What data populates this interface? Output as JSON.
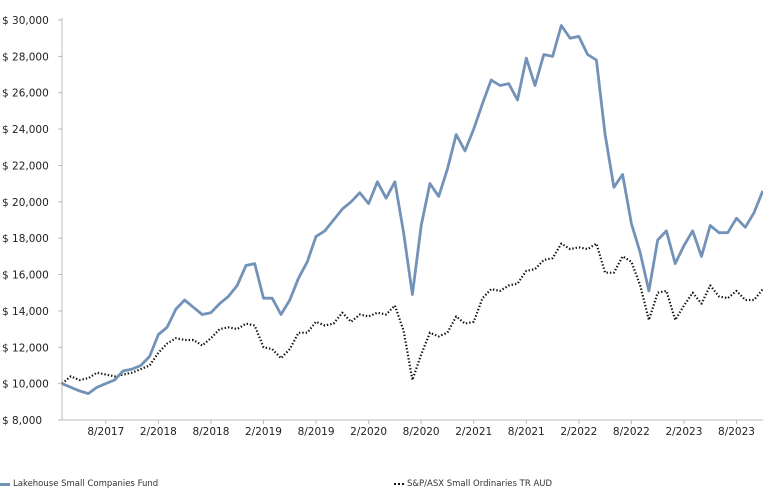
{
  "chart_data": {
    "type": "line",
    "title": "",
    "xlabel": "",
    "ylabel": "",
    "ylim": [
      8000,
      30000
    ],
    "y_ticks": [
      8000,
      10000,
      12000,
      14000,
      16000,
      18000,
      20000,
      22000,
      24000,
      26000,
      28000,
      30000
    ],
    "y_tick_labels": [
      "$ 8,000",
      "$ 10,000",
      "$ 12,000",
      "$ 14,000",
      "$ 16,000",
      "$ 18,000",
      "$ 20,000",
      "$ 22,000",
      "$ 24,000",
      "$ 26,000",
      "$ 28,000",
      "$ 30,000"
    ],
    "x_tick_labels": [
      "8/2017",
      "2/2018",
      "8/2018",
      "2/2019",
      "8/2019",
      "2/2020",
      "8/2020",
      "2/2021",
      "8/2021",
      "2/2022",
      "8/2022",
      "2/2023",
      "8/2023"
    ],
    "x_start": "3/2017",
    "x_end": "10/2023",
    "grid": false,
    "legend_position": "bottom",
    "series": [
      {
        "name": "Lakehouse Small Companies Fund",
        "color": "#7392b8",
        "style": "solid",
        "values": [
          10000,
          9800,
          9600,
          9450,
          9800,
          10000,
          10200,
          10700,
          10800,
          11000,
          11500,
          12700,
          13100,
          14100,
          14600,
          14200,
          13800,
          13900,
          14400,
          14800,
          15400,
          16500,
          16600,
          14700,
          14700,
          13800,
          14600,
          15800,
          16700,
          18100,
          18400,
          19000,
          19600,
          20000,
          20500,
          19900,
          21100,
          20200,
          21100,
          18300,
          14900,
          18700,
          21000,
          20300,
          21800,
          23700,
          22800,
          24000,
          25400,
          26700,
          26400,
          26500,
          25600,
          27900,
          26400,
          28100,
          28000,
          29700,
          29000,
          29100,
          28100,
          27800,
          23700,
          20800,
          21500,
          18800,
          17200,
          15100,
          17900,
          18400,
          16600,
          17600,
          18400,
          17000,
          18700,
          18300,
          18300,
          19100,
          18600,
          19400,
          20600
        ]
      },
      {
        "name": "S&P/ASX Small Ordinaries TR AUD",
        "color": "#111111",
        "style": "dotted",
        "values": [
          10000,
          10400,
          10200,
          10300,
          10600,
          10500,
          10400,
          10500,
          10600,
          10800,
          11000,
          11700,
          12200,
          12500,
          12400,
          12400,
          12100,
          12500,
          13000,
          13100,
          13000,
          13300,
          13200,
          12000,
          11900,
          11400,
          11900,
          12800,
          12800,
          13400,
          13200,
          13300,
          13900,
          13400,
          13800,
          13700,
          13900,
          13800,
          14300,
          12900,
          10200,
          11600,
          12800,
          12600,
          12800,
          13700,
          13300,
          13400,
          14700,
          15200,
          15100,
          15400,
          15500,
          16200,
          16300,
          16800,
          16900,
          17700,
          17400,
          17500,
          17400,
          17700,
          16100,
          16100,
          17000,
          16700,
          15400,
          13500,
          15000,
          15100,
          13500,
          14300,
          15000,
          14400,
          15400,
          14800,
          14700,
          15100,
          14600,
          14600,
          15200
        ]
      }
    ]
  }
}
